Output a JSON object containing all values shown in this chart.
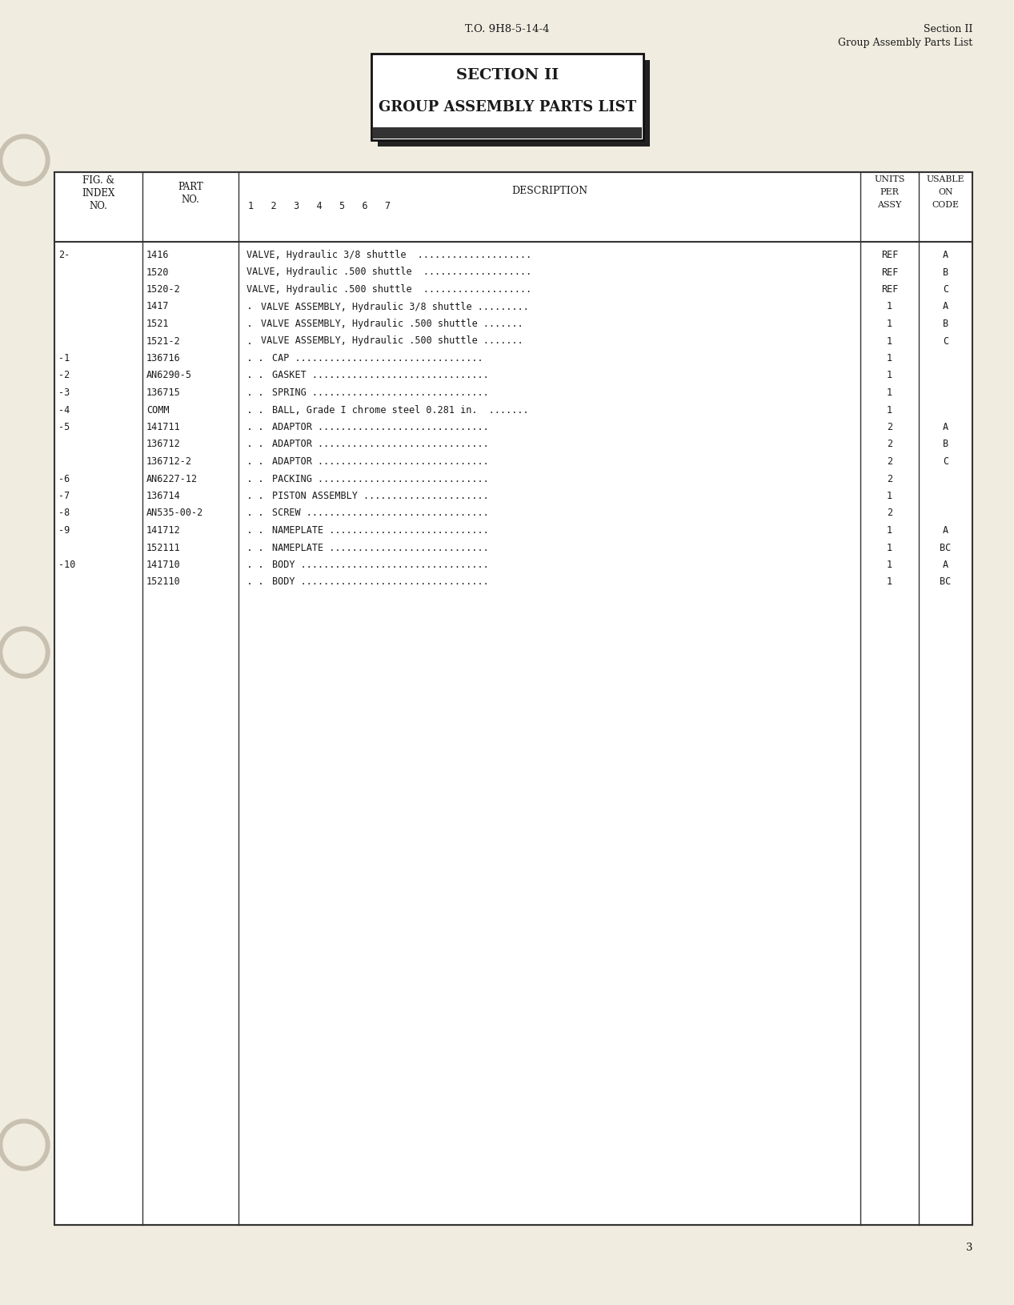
{
  "page_bg": "#f0ece0",
  "header_to": "T.O. 9H8-5-14-4",
  "header_section_line1": "Section II",
  "header_section_line2": "Group Assembly Parts List",
  "title_line1": "SECTION II",
  "title_line2": "GROUP ASSEMBLY PARTS LIST",
  "page_number": "3",
  "rows": [
    {
      "fig": "2-",
      "part": "1416",
      "indent": 0,
      "desc": "VALVE, Hydraulic 3/8 shuttle  ....................",
      "units": "REF",
      "code": "A"
    },
    {
      "fig": "",
      "part": "1520",
      "indent": 0,
      "desc": "VALVE, Hydraulic .500 shuttle  ...................",
      "units": "REF",
      "code": "B"
    },
    {
      "fig": "",
      "part": "1520-2",
      "indent": 0,
      "desc": "VALVE, Hydraulic .500 shuttle  ...................",
      "units": "REF",
      "code": "C"
    },
    {
      "fig": "",
      "part": "1417",
      "indent": 1,
      "desc": "VALVE ASSEMBLY, Hydraulic 3/8 shuttle .........",
      "units": "1",
      "code": "A"
    },
    {
      "fig": "",
      "part": "1521",
      "indent": 1,
      "desc": "VALVE ASSEMBLY, Hydraulic .500 shuttle .......",
      "units": "1",
      "code": "B"
    },
    {
      "fig": "",
      "part": "1521-2",
      "indent": 1,
      "desc": "VALVE ASSEMBLY, Hydraulic .500 shuttle .......",
      "units": "1",
      "code": "C"
    },
    {
      "fig": "-1",
      "part": "136716",
      "indent": 2,
      "desc": "CAP .................................",
      "units": "1",
      "code": ""
    },
    {
      "fig": "-2",
      "part": "AN6290-5",
      "indent": 2,
      "desc": "GASKET ...............................",
      "units": "1",
      "code": ""
    },
    {
      "fig": "-3",
      "part": "136715",
      "indent": 2,
      "desc": "SPRING ...............................",
      "units": "1",
      "code": ""
    },
    {
      "fig": "-4",
      "part": "COMM",
      "indent": 2,
      "desc": "BALL, Grade I chrome steel 0.281 in.  .......",
      "units": "1",
      "code": ""
    },
    {
      "fig": "-5",
      "part": "141711",
      "indent": 2,
      "desc": "ADAPTOR ..............................",
      "units": "2",
      "code": "A"
    },
    {
      "fig": "",
      "part": "136712",
      "indent": 2,
      "desc": "ADAPTOR ..............................",
      "units": "2",
      "code": "B"
    },
    {
      "fig": "",
      "part": "136712-2",
      "indent": 2,
      "desc": "ADAPTOR ..............................",
      "units": "2",
      "code": "C"
    },
    {
      "fig": "-6",
      "part": "AN6227-12",
      "indent": 2,
      "desc": "PACKING ..............................",
      "units": "2",
      "code": ""
    },
    {
      "fig": "-7",
      "part": "136714",
      "indent": 2,
      "desc": "PISTON ASSEMBLY ......................",
      "units": "1",
      "code": ""
    },
    {
      "fig": "-8",
      "part": "AN535-00-2",
      "indent": 2,
      "desc": "SCREW ................................",
      "units": "2",
      "code": ""
    },
    {
      "fig": "-9",
      "part": "141712",
      "indent": 2,
      "desc": "NAMEPLATE ............................",
      "units": "1",
      "code": "A"
    },
    {
      "fig": "",
      "part": "152111",
      "indent": 2,
      "desc": "NAMEPLATE ............................",
      "units": "1",
      "code": "BC"
    },
    {
      "fig": "-10",
      "part": "141710",
      "indent": 2,
      "desc": "BODY .................................",
      "units": "1",
      "code": "A"
    },
    {
      "fig": "",
      "part": "152110",
      "indent": 2,
      "desc": "BODY .................................",
      "units": "1",
      "code": "BC"
    }
  ]
}
